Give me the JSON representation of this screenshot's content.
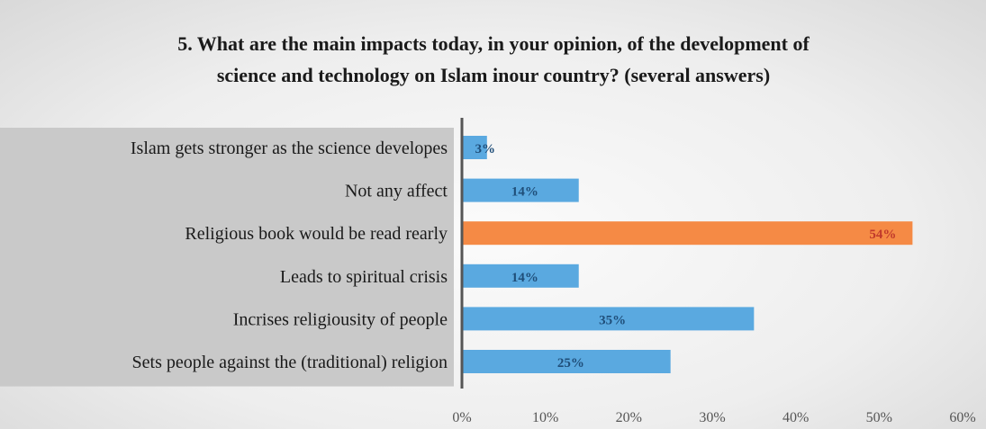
{
  "chart_data": {
    "type": "bar",
    "orientation": "horizontal",
    "title_lines": [
      "5. What are the main impacts today, in your opinion, of the development of",
      "science and technology on Islam inour country? (several answers)"
    ],
    "categories": [
      "Islam gets stronger as the science developes",
      "Not any affect",
      "Religious book would be read rearly",
      "Leads to spiritual crisis",
      "Incrises religiousity of people",
      "Sets people against the (traditional) religion"
    ],
    "values": [
      3,
      14,
      54,
      14,
      35,
      25
    ],
    "data_labels": [
      "3%",
      "14%",
      "54%",
      "14%",
      "35%",
      "25%"
    ],
    "xlim": [
      0,
      60
    ],
    "x_ticks": [
      "0%",
      "10%",
      "20%",
      "30%",
      "40%",
      "50%",
      "60%"
    ],
    "grid": false,
    "legend": "none",
    "colors": {
      "bar": "#5aa9e0",
      "highlight": "#f58a45",
      "axis": "#555555"
    },
    "highlight_index": 2
  }
}
